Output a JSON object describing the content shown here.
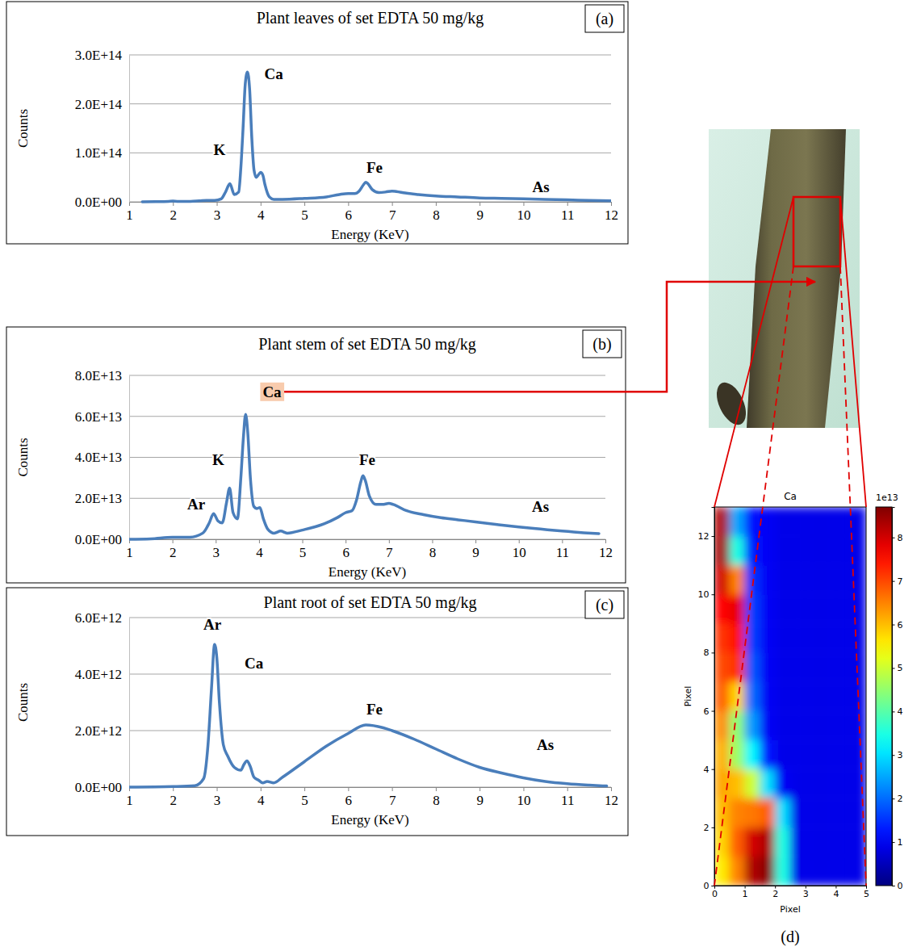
{
  "chart_data": [
    {
      "type": "line",
      "title": "Plant leaves of set EDTA 50 mg/kg",
      "panel_label": "(a)",
      "x_label": "Energy (KeV)",
      "y_label": "Counts",
      "color": "#4a7ebb",
      "grid": "y",
      "xlim": [
        1,
        12
      ],
      "xticks": [
        1,
        2,
        3,
        4,
        5,
        6,
        7,
        8,
        9,
        10,
        11,
        12
      ],
      "ylim": [
        0,
        300000000000000.0
      ],
      "yticks": [
        {
          "value": 0,
          "label": "0.0E+00"
        },
        {
          "value": 100000000000000.0,
          "label": "1.0E+14"
        },
        {
          "value": 200000000000000.0,
          "label": "2.0E+14"
        },
        {
          "value": 300000000000000.0,
          "label": "3.0E+14"
        }
      ],
      "x": [
        1.3,
        1.6,
        1.9,
        2.0,
        2.1,
        2.4,
        2.6,
        2.8,
        2.95,
        3.1,
        3.2,
        3.3,
        3.4,
        3.5,
        3.55,
        3.6,
        3.65,
        3.7,
        3.75,
        3.8,
        3.85,
        3.9,
        3.95,
        4.0,
        4.05,
        4.1,
        4.2,
        4.3,
        4.5,
        5.0,
        5.5,
        5.8,
        6.0,
        6.15,
        6.25,
        6.35,
        6.4,
        6.45,
        6.55,
        6.7,
        6.85,
        7.0,
        7.1,
        7.3,
        7.6,
        8.0,
        8.5,
        9.0,
        9.5,
        10.0,
        10.5,
        11.0,
        11.5,
        12.0
      ],
      "values": [
        0,
        300000000000.0,
        1000000000000.0,
        1500000000000.0,
        1000000000000.0,
        1000000000000.0,
        2000000000000.0,
        3000000000000.0,
        3000000000000.0,
        6000000000000.0,
        20000000000000.0,
        37000000000000.0,
        15000000000000.0,
        20000000000000.0,
        70000000000000.0,
        150000000000000.0,
        240000000000000.0,
        265000000000000.0,
        230000000000000.0,
        130000000000000.0,
        65000000000000.0,
        50000000000000.0,
        55000000000000.0,
        60000000000000.0,
        55000000000000.0,
        35000000000000.0,
        10000000000000.0,
        5000000000000.0,
        5000000000000.0,
        7000000000000.0,
        10000000000000.0,
        15000000000000.0,
        17000000000000.0,
        17000000000000.0,
        22000000000000.0,
        35000000000000.0,
        40000000000000.0,
        37000000000000.0,
        25000000000000.0,
        19000000000000.0,
        20000000000000.0,
        22000000000000.0,
        21000000000000.0,
        18000000000000.0,
        15000000000000.0,
        12000000000000.0,
        10000000000000.0,
        8000000000000.0,
        7000000000000.0,
        6000000000000.0,
        5000000000000.0,
        4000000000000.0,
        3000000000000.0,
        2000000000000.0
      ],
      "annotations": [
        {
          "text": "Ca",
          "x": 4.3,
          "y": 262000000000000.0
        },
        {
          "text": "K",
          "x": 3.06,
          "y": 107000000000000.0
        },
        {
          "text": "Fe",
          "x": 6.6,
          "y": 70000000000000.0
        },
        {
          "text": "As",
          "x": 10.4,
          "y": 30000000000000.0
        }
      ]
    },
    {
      "type": "line",
      "title": "Plant stem of set EDTA 50 mg/kg",
      "panel_label": "(b)",
      "x_label": "Energy (KeV)",
      "y_label": "Counts",
      "color": "#4a7ebb",
      "grid": "y",
      "xlim": [
        1,
        12
      ],
      "xticks": [
        1,
        2,
        3,
        4,
        5,
        6,
        7,
        8,
        9,
        10,
        11,
        12
      ],
      "ylim": [
        0,
        80000000000000.0
      ],
      "yticks": [
        {
          "value": 0,
          "label": "0.0E+00"
        },
        {
          "value": 20000000000000.0,
          "label": "2.0E+13"
        },
        {
          "value": 40000000000000.0,
          "label": "4.0E+13"
        },
        {
          "value": 60000000000000.0,
          "label": "6.0E+13"
        },
        {
          "value": 80000000000000.0,
          "label": "8.0E+13"
        }
      ],
      "x": [
        1.0,
        1.5,
        2.0,
        2.4,
        2.7,
        2.85,
        2.95,
        3.05,
        3.15,
        3.25,
        3.32,
        3.4,
        3.5,
        3.58,
        3.64,
        3.69,
        3.74,
        3.8,
        3.88,
        3.95,
        4.02,
        4.1,
        4.2,
        4.35,
        4.5,
        4.65,
        5.0,
        5.5,
        5.8,
        6.0,
        6.15,
        6.25,
        6.35,
        6.4,
        6.45,
        6.55,
        6.7,
        6.85,
        7.0,
        7.1,
        7.4,
        7.8,
        8.2,
        8.6,
        9.0,
        9.5,
        10.0,
        10.5,
        11.0,
        11.5,
        11.85
      ],
      "values": [
        0,
        200000000000.0,
        1000000000000.0,
        1000000000000.0,
        3000000000000.0,
        8000000000000.0,
        12500000000000.0,
        9000000000000.0,
        8000000000000.0,
        18000000000000.0,
        25000000000000.0,
        13000000000000.0,
        10000000000000.0,
        30000000000000.0,
        50000000000000.0,
        61000000000000.0,
        52000000000000.0,
        30000000000000.0,
        16000000000000.0,
        15000000000000.0,
        15500000000000.0,
        10000000000000.0,
        5000000000000.0,
        3000000000000.0,
        4000000000000.0,
        3000000000000.0,
        4500000000000.0,
        7500000000000.0,
        10500000000000.0,
        13000000000000.0,
        14000000000000.0,
        19000000000000.0,
        28000000000000.0,
        31000000000000.0,
        29000000000000.0,
        21000000000000.0,
        17000000000000.0,
        17000000000000.0,
        17500000000000.0,
        17000000000000.0,
        14000000000000.0,
        12000000000000.0,
        10500000000000.0,
        9500000000000.0,
        8500000000000.0,
        7200000000000.0,
        6000000000000.0,
        5000000000000.0,
        4000000000000.0,
        3200000000000.0,
        2800000000000.0
      ],
      "annotations": [
        {
          "text": "Ca",
          "x": 4.3,
          "y": 72000000000000.0
        },
        {
          "text": "K",
          "x": 3.06,
          "y": 39000000000000.0
        },
        {
          "text": "Ar",
          "x": 2.55,
          "y": 17000000000000.0
        },
        {
          "text": "Fe",
          "x": 6.5,
          "y": 39000000000000.0
        },
        {
          "text": "As",
          "x": 10.5,
          "y": 16000000000000.0
        }
      ]
    },
    {
      "type": "line",
      "title": "Plant root of set EDTA 50 mg/kg",
      "panel_label": "(c)",
      "x_label": "Energy (KeV)",
      "y_label": "Counts",
      "color": "#4a7ebb",
      "grid": "y",
      "xlim": [
        1,
        12
      ],
      "xticks": [
        1,
        2,
        3,
        4,
        5,
        6,
        7,
        8,
        9,
        10,
        11,
        12
      ],
      "ylim": [
        0,
        6000000000000.0
      ],
      "yticks": [
        {
          "value": 0,
          "label": "0.0E+00"
        },
        {
          "value": 2000000000000.0,
          "label": "2.0E+12"
        },
        {
          "value": 4000000000000.0,
          "label": "4.0E+12"
        },
        {
          "value": 6000000000000.0,
          "label": "6.0E+12"
        }
      ],
      "x": [
        1.0,
        2.0,
        2.5,
        2.7,
        2.8,
        2.88,
        2.95,
        3.0,
        3.06,
        3.15,
        3.25,
        3.4,
        3.55,
        3.62,
        3.69,
        3.76,
        3.85,
        3.95,
        4.05,
        4.15,
        4.3,
        4.5,
        5.0,
        5.5,
        6.0,
        6.4,
        6.8,
        7.0,
        7.5,
        8.0,
        8.5,
        9.0,
        9.5,
        10.0,
        10.5,
        11.0,
        11.5,
        11.9
      ],
      "values": [
        0,
        20000000000.0,
        50000000000.0,
        300000000000.0,
        1500000000000.0,
        3500000000000.0,
        5050000000000.0,
        4600000000000.0,
        3000000000000.0,
        1500000000000.0,
        1100000000000.0,
        700000000000.0,
        600000000000.0,
        800000000000.0,
        930000000000.0,
        750000000000.0,
        350000000000.0,
        250000000000.0,
        150000000000.0,
        200000000000.0,
        150000000000.0,
        350000000000.0,
        900000000000.0,
        1450000000000.0,
        1900000000000.0,
        2200000000000.0,
        2100000000000.0,
        2000000000000.0,
        1700000000000.0,
        1350000000000.0,
        1000000000000.0,
        700000000000.0,
        500000000000.0,
        330000000000.0,
        200000000000.0,
        120000000000.0,
        70000000000.0,
        40000000000.0
      ],
      "annotations": [
        {
          "text": "Ar",
          "x": 2.9,
          "y": 5750000000000.0
        },
        {
          "text": "Ca",
          "x": 3.85,
          "y": 4400000000000.0
        },
        {
          "text": "Fe",
          "x": 6.6,
          "y": 2750000000000.0
        },
        {
          "text": "As",
          "x": 10.5,
          "y": 1500000000000.0
        }
      ]
    },
    {
      "type": "heatmap",
      "title": "Ca",
      "panel_label": "(d)",
      "x_label": "Pixel",
      "y_label": "Pixel",
      "xlim": [
        0,
        5
      ],
      "xticks": [
        0,
        1,
        2,
        3,
        4,
        5
      ],
      "ylim": [
        0,
        13
      ],
      "yticks": [
        0,
        2,
        4,
        6,
        8,
        10,
        12
      ],
      "xbins": [
        0,
        0.5,
        1,
        1.5,
        2,
        2.5,
        3,
        3.5,
        4,
        4.5,
        5
      ],
      "ybins": [
        0,
        1,
        2,
        3,
        4,
        5,
        6,
        7,
        8,
        9,
        10,
        11,
        12,
        13
      ],
      "cells": [
        [
          5.6,
          6.5,
          8.3,
          8.6,
          3.5,
          0.9,
          0.9,
          0.9,
          0.9,
          0.9
        ],
        [
          5.8,
          6.8,
          8.0,
          8.3,
          3.5,
          0.9,
          0.9,
          0.9,
          0.9,
          0.9
        ],
        [
          6.0,
          6.5,
          6.6,
          6.8,
          3.0,
          0.9,
          0.9,
          0.9,
          0.9,
          0.9
        ],
        [
          6.2,
          6.0,
          5.0,
          3.0,
          1.0,
          0.9,
          0.9,
          0.9,
          0.9,
          0.9
        ],
        [
          6.1,
          4.6,
          3.2,
          1.3,
          0.9,
          0.9,
          0.9,
          0.9,
          0.9,
          0.9
        ],
        [
          6.4,
          4.5,
          2.4,
          1.0,
          0.9,
          0.9,
          0.9,
          0.9,
          0.9,
          0.9
        ],
        [
          6.8,
          5.8,
          2.0,
          1.0,
          0.9,
          0.9,
          0.9,
          0.9,
          0.9,
          0.9
        ],
        [
          7.0,
          7.2,
          1.8,
          1.0,
          0.9,
          0.9,
          0.9,
          0.9,
          0.9,
          0.9
        ],
        [
          7.2,
          7.5,
          1.6,
          1.0,
          0.9,
          0.9,
          0.9,
          0.9,
          0.9,
          0.9
        ],
        [
          7.6,
          7.8,
          1.6,
          1.0,
          0.9,
          0.9,
          0.9,
          0.9,
          0.9,
          0.9
        ],
        [
          8.0,
          6.5,
          1.5,
          1.0,
          0.9,
          0.9,
          0.9,
          0.9,
          0.9,
          0.9
        ],
        [
          8.4,
          3.5,
          1.3,
          1.0,
          0.9,
          0.9,
          0.9,
          0.9,
          0.9,
          0.9
        ],
        [
          8.3,
          2.5,
          1.2,
          1.0,
          0.9,
          0.9,
          0.9,
          0.9,
          0.9,
          0.9
        ]
      ],
      "color_range": [
        0,
        8.7
      ],
      "color_ticks": [
        0,
        1,
        2,
        3,
        4,
        5,
        6,
        7,
        8
      ],
      "color_multiplier": "1e13"
    }
  ]
}
